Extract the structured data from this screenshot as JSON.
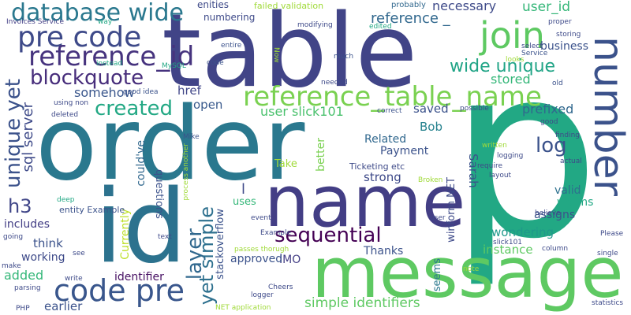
{
  "words": [
    {
      "text": "p",
      "color": "#22a884"
    },
    {
      "text": "order",
      "color": "#2a788e"
    },
    {
      "text": "table",
      "color": "#414487"
    },
    {
      "text": "id",
      "color": "#2c728e"
    },
    {
      "text": "name",
      "color": "#433e85"
    },
    {
      "text": "message",
      "color": "#5ec962"
    },
    {
      "text": "number",
      "color": "#3b528b"
    },
    {
      "text": "reference_table_name",
      "color": "#7ad151"
    },
    {
      "text": "pre code",
      "color": "#3e4a89"
    },
    {
      "text": "code pre",
      "color": "#39568c"
    },
    {
      "text": "database wide",
      "color": "#2a788e"
    },
    {
      "text": "join",
      "color": "#5ec962"
    },
    {
      "text": "reference_id",
      "color": "#46337e"
    },
    {
      "text": "blockquote",
      "color": "#472d7b"
    },
    {
      "text": "sequential",
      "color": "#440154"
    },
    {
      "text": "created",
      "color": "#22a884"
    },
    {
      "text": "unique yet",
      "color": "#3b528b"
    },
    {
      "text": "wide unique",
      "color": "#20a486"
    },
    {
      "text": "log",
      "color": "#3b528b"
    },
    {
      "text": "layer",
      "color": "#31688e"
    },
    {
      "text": "h3",
      "color": "#404688"
    },
    {
      "text": "sql server",
      "color": "#3e4a89"
    },
    {
      "text": "yet simple",
      "color": "#2d708e"
    },
    {
      "text": "reference _",
      "color": "#31688e"
    },
    {
      "text": "user_id",
      "color": "#35b779"
    },
    {
      "text": "business",
      "color": "#3b528b"
    },
    {
      "text": "necessary",
      "color": "#3e4a89"
    },
    {
      "text": "stored",
      "color": "#35b779"
    },
    {
      "text": "prefixed",
      "color": "#31688e"
    },
    {
      "text": "user slick101",
      "color": "#4ac16d"
    },
    {
      "text": "somehow",
      "color": "#39568c"
    },
    {
      "text": "href",
      "color": "#404688"
    },
    {
      "text": "open",
      "color": "#38598c"
    },
    {
      "text": "saved",
      "color": "#3b528b"
    },
    {
      "text": "Bob",
      "color": "#26828e"
    },
    {
      "text": "Related",
      "color": "#31688e"
    },
    {
      "text": "Payment",
      "color": "#3b528b"
    },
    {
      "text": "better",
      "color": "#7ad151"
    },
    {
      "text": "Sarah",
      "color": "#3b528b"
    },
    {
      "text": "strong",
      "color": "#3e4a89"
    },
    {
      "text": "Take",
      "color": "#a0da39"
    },
    {
      "text": "valid",
      "color": "#2d708e"
    },
    {
      "text": "assigns",
      "color": "#3b528b"
    },
    {
      "text": "worms",
      "color": "#22a884"
    },
    {
      "text": "wondering",
      "color": "#1f988b"
    },
    {
      "text": "instance",
      "color": "#5ec962"
    },
    {
      "text": "Thanks",
      "color": "#3b528b"
    },
    {
      "text": "IMO",
      "color": "#433e85"
    },
    {
      "text": "approved",
      "color": "#3b528b"
    },
    {
      "text": "simple identifiers",
      "color": "#5ec962"
    },
    {
      "text": "identifier",
      "color": "#471063"
    },
    {
      "text": "earlier",
      "color": "#3b528b"
    },
    {
      "text": "added",
      "color": "#35b779"
    },
    {
      "text": "working",
      "color": "#3e4a89"
    },
    {
      "text": "includes",
      "color": "#433e85"
    },
    {
      "text": "think",
      "color": "#3b528b"
    },
    {
      "text": "Currently",
      "color": "#bddf26"
    },
    {
      "text": "could've",
      "color": "#31688e"
    },
    {
      "text": "questions",
      "color": "#3b528b"
    },
    {
      "text": "stackoverflow",
      "color": "#3b528b"
    },
    {
      "text": "uses",
      "color": "#35b779"
    },
    {
      "text": "seems",
      "color": "#2a788e"
    },
    {
      "text": "winform NET",
      "color": "#3e4a89"
    },
    {
      "text": "Ticketing etc",
      "color": "#3e4a89"
    },
    {
      "text": "entity Example",
      "color": "#3b528b"
    },
    {
      "text": "numbering",
      "color": "#3e4a89"
    },
    {
      "text": "enities",
      "color": "#3e4a89"
    },
    {
      "text": "failed validation",
      "color": "#a0da39"
    },
    {
      "text": "Invoices Service",
      "color": "#433e85"
    },
    {
      "text": "way",
      "color": "#22a884"
    },
    {
      "text": "good idea",
      "color": "#3b528b"
    },
    {
      "text": "MySQL",
      "color": "#22a884"
    },
    {
      "text": "instead",
      "color": "#22a884"
    },
    {
      "text": "using non",
      "color": "#3e4a89"
    },
    {
      "text": "deleted",
      "color": "#3e4a89"
    },
    {
      "text": "code",
      "color": "#3b528b"
    },
    {
      "text": "entire",
      "color": "#3b528b"
    },
    {
      "text": "Now",
      "color": "#a0da39"
    },
    {
      "text": "much",
      "color": "#3b528b"
    },
    {
      "text": "modifying",
      "color": "#3e4a89"
    },
    {
      "text": "edited",
      "color": "#22a884"
    },
    {
      "text": "probably",
      "color": "#31688e"
    },
    {
      "text": "proper",
      "color": "#3e4a89"
    },
    {
      "text": "storing",
      "color": "#3e4a89"
    },
    {
      "text": "select",
      "color": "#3e4a89"
    },
    {
      "text": "Service",
      "color": "#3b528b"
    },
    {
      "text": "looks",
      "color": "#a0da39"
    },
    {
      "text": "old",
      "color": "#3b528b"
    },
    {
      "text": "needed",
      "color": "#3e4a89"
    },
    {
      "text": "knee",
      "color": "#3e4a89"
    },
    {
      "text": "correct",
      "color": "#3b528b"
    },
    {
      "text": "possible",
      "color": "#3e4a89"
    },
    {
      "text": "good",
      "color": "#3e4a89"
    },
    {
      "text": "finding",
      "color": "#3e4a89"
    },
    {
      "text": "written",
      "color": "#a0da39"
    },
    {
      "text": "logging",
      "color": "#3e4a89"
    },
    {
      "text": "require",
      "color": "#3e4a89"
    },
    {
      "text": "layout",
      "color": "#3e4a89"
    },
    {
      "text": "actual",
      "color": "#3e4a89"
    },
    {
      "text": "Mike",
      "color": "#3b528b"
    },
    {
      "text": "process another",
      "color": "#a0da39"
    },
    {
      "text": "Broken",
      "color": "#a0da39"
    },
    {
      "text": "event",
      "color": "#3e4a89"
    },
    {
      "text": "user",
      "color": "#3e4a89"
    },
    {
      "text": "believe",
      "color": "#3e4a89"
    },
    {
      "text": "slick101",
      "color": "#3e4a89"
    },
    {
      "text": "column",
      "color": "#3e4a89"
    },
    {
      "text": "Please",
      "color": "#3e4a89"
    },
    {
      "text": "single",
      "color": "#3e4a89"
    },
    {
      "text": "Example",
      "color": "#3e4a89"
    },
    {
      "text": "passes thorugh",
      "color": "#a0da39"
    },
    {
      "text": "Cheers",
      "color": "#3e4a89"
    },
    {
      "text": "logger",
      "color": "#3e4a89"
    },
    {
      "text": "NET application",
      "color": "#a0da39"
    },
    {
      "text": "deep",
      "color": "#22a884"
    },
    {
      "text": "going",
      "color": "#3e4a89"
    },
    {
      "text": "text",
      "color": "#3e4a89"
    },
    {
      "text": "see",
      "color": "#3e4a89"
    },
    {
      "text": "make",
      "color": "#3e4a89"
    },
    {
      "text": "write",
      "color": "#3e4a89"
    },
    {
      "text": "parsing",
      "color": "#3e4a89"
    },
    {
      "text": "PHP",
      "color": "#3e4a89"
    },
    {
      "text": "note",
      "color": "#a0da39"
    },
    {
      "text": "statistics",
      "color": "#3e4a89"
    },
    {
      "text": "l",
      "color": "#3e4a89"
    }
  ]
}
